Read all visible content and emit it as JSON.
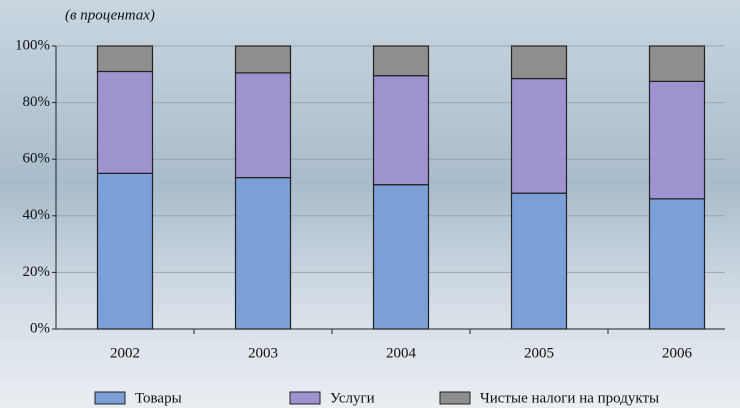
{
  "chart_data": {
    "type": "stacked_bar",
    "subtitle": "(в процентах)",
    "categories": [
      "2002",
      "2003",
      "2004",
      "2005",
      "2006"
    ],
    "series": [
      {
        "name": "Товары",
        "color": "#7b9fd6",
        "values": [
          55,
          53.5,
          51,
          48,
          46
        ]
      },
      {
        "name": "Услуги",
        "color": "#9e92cf",
        "values": [
          36,
          37,
          38.5,
          40.5,
          41.5
        ]
      },
      {
        "name": "Чистые налоги на продукты",
        "color": "#8e8e8e",
        "values": [
          9,
          9.5,
          10.5,
          11.5,
          12.5
        ]
      }
    ],
    "ylim": [
      0,
      100
    ],
    "yticks": [
      {
        "value": 0,
        "label": "0%"
      },
      {
        "value": 20,
        "label": "20%"
      },
      {
        "value": 40,
        "label": "40%"
      },
      {
        "value": 60,
        "label": "60%"
      },
      {
        "value": 80,
        "label": "80%"
      },
      {
        "value": 100,
        "label": "100%"
      }
    ],
    "grid": true
  }
}
